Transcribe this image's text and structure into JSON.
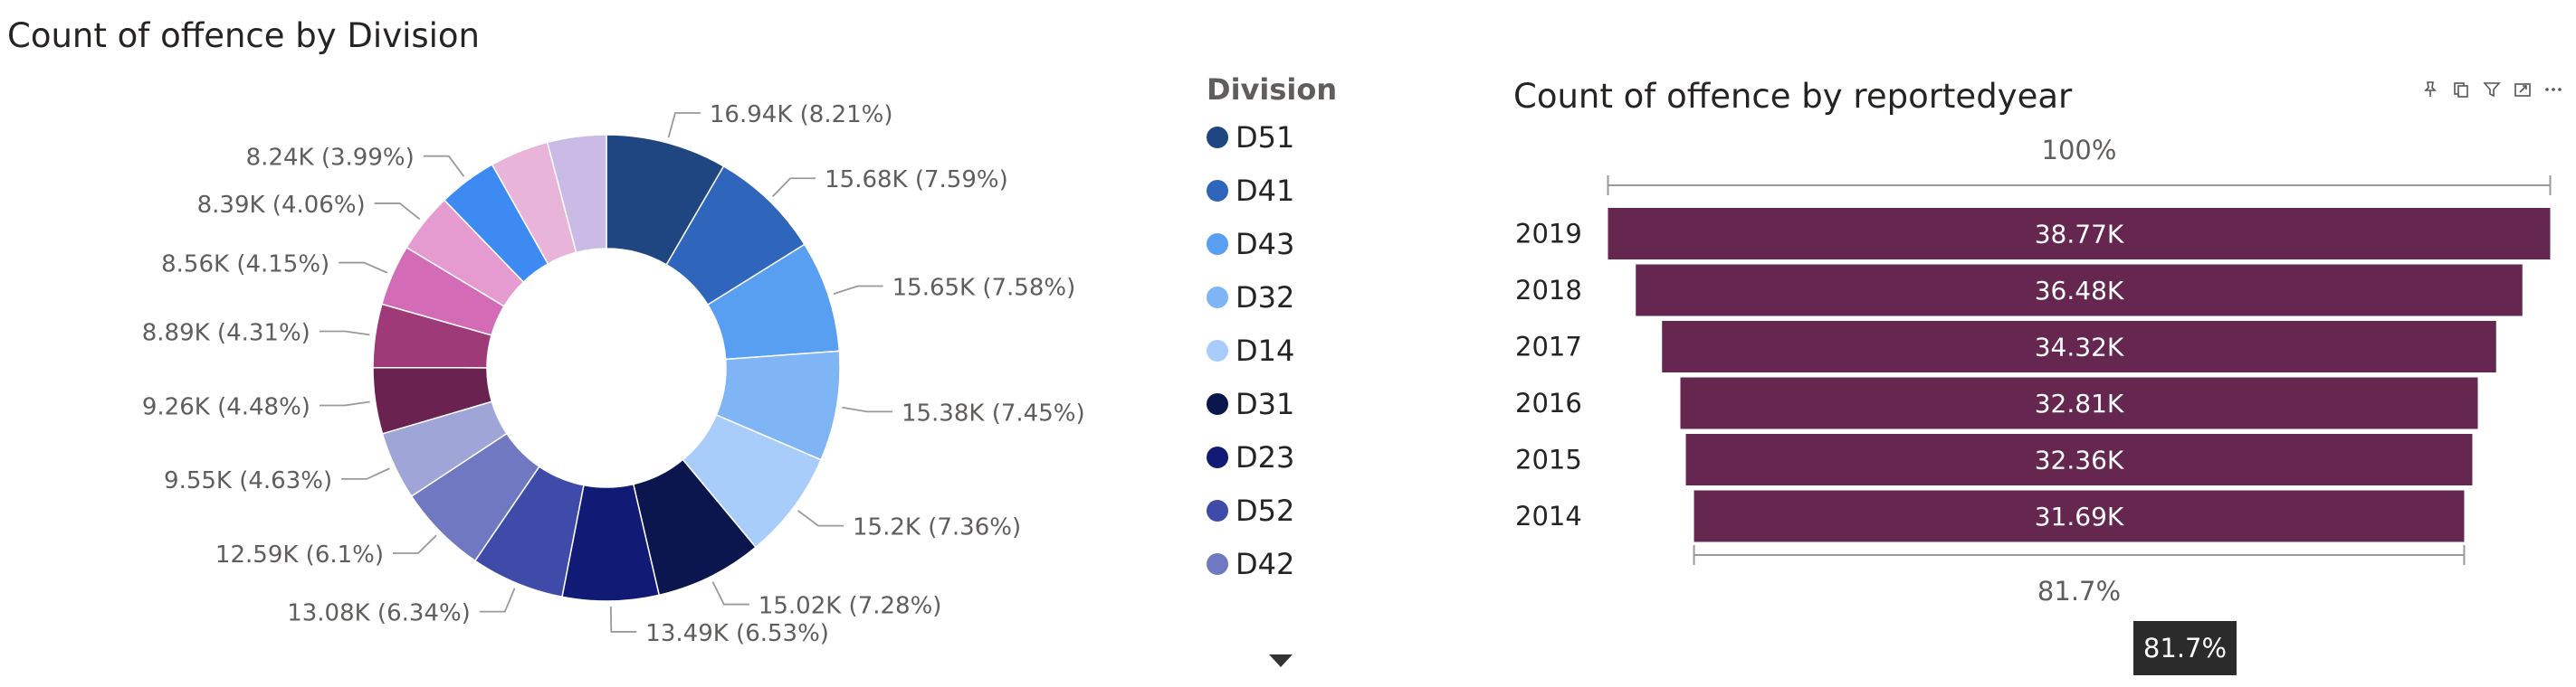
{
  "donut": {
    "title": "Count of offence by Division",
    "legend_title": "Division"
  },
  "funnel": {
    "title": "Count of offence by reportedyear",
    "top_pct": "100%",
    "bottom_pct": "81.7%",
    "tooltip": "81.7%"
  },
  "toolbar_icons": [
    "pin-icon",
    "copy-icon",
    "filter-icon",
    "focus-icon",
    "more-icon"
  ],
  "chart_data": [
    {
      "type": "pie",
      "variant": "donut",
      "title": "Count of offence by Division",
      "legend_title": "Division",
      "legend_entries": [
        "D51",
        "D41",
        "D43",
        "D32",
        "D14",
        "D31",
        "D23",
        "D52",
        "D42"
      ],
      "slices": [
        {
          "name": "D51",
          "value": 16940,
          "label": "16.94K (8.21%)",
          "color": "#1f4680"
        },
        {
          "name": "D41",
          "value": 15680,
          "label": "15.68K (7.59%)",
          "color": "#2f66bb"
        },
        {
          "name": "D43",
          "value": 15650,
          "label": "15.65K (7.58%)",
          "color": "#589ef1"
        },
        {
          "name": "D32",
          "value": 15380,
          "label": "15.38K (7.45%)",
          "color": "#7fb5f5"
        },
        {
          "name": "D14",
          "value": 15200,
          "label": "15.2K (7.36%)",
          "color": "#a9cdfa"
        },
        {
          "name": "D31",
          "value": 15020,
          "label": "15.02K (7.28%)",
          "color": "#0b154e"
        },
        {
          "name": "",
          "value": 13490,
          "label": "13.49K (6.53%)",
          "color": "#111b76"
        },
        {
          "name": "",
          "value": 13080,
          "label": "13.08K (6.34%)",
          "color": "#3f4ba8"
        },
        {
          "name": "",
          "value": 12590,
          "label": "12.59K (6.1%)",
          "color": "#6f78c0"
        },
        {
          "name": "",
          "value": 9550,
          "label": "9.55K (4.63%)",
          "color": "#9fa5d6"
        },
        {
          "name": "",
          "value": 9260,
          "label": "9.26K (4.48%)",
          "color": "#6a2350"
        },
        {
          "name": "",
          "value": 8890,
          "label": "8.89K (4.31%)",
          "color": "#9e3a78"
        },
        {
          "name": "",
          "value": 8560,
          "label": "8.56K (4.15%)",
          "color": "#d36bb6"
        },
        {
          "name": "",
          "value": 8390,
          "label": "8.39K (4.06%)",
          "color": "#e59bd0"
        },
        {
          "name": "",
          "value": 8240,
          "label": "8.24K (3.99%)",
          "color": "#3d8bf2"
        },
        {
          "name": "",
          "value": 8240,
          "label": "",
          "color": "#e8b4da"
        },
        {
          "name": "",
          "value": 8240,
          "label": "",
          "color": "#c9bbe6"
        }
      ],
      "legend_colors": [
        "#1f4680",
        "#2f66bb",
        "#589ef1",
        "#7fb5f5",
        "#a9cdfa",
        "#0b154e",
        "#111b76",
        "#3f4ba8",
        "#6f78c0"
      ]
    },
    {
      "type": "bar",
      "variant": "funnel",
      "title": "Count of offence by reportedyear",
      "categories": [
        "2019",
        "2018",
        "2017",
        "2016",
        "2015",
        "2014"
      ],
      "values": [
        38770,
        36480,
        34320,
        32810,
        32360,
        31690
      ],
      "labels": [
        "38.77K",
        "36.48K",
        "34.32K",
        "32.81K",
        "32.36K",
        "31.69K"
      ],
      "color": "#65264f",
      "top_percent_label": "100%",
      "bottom_percent_label": "81.7%"
    }
  ]
}
